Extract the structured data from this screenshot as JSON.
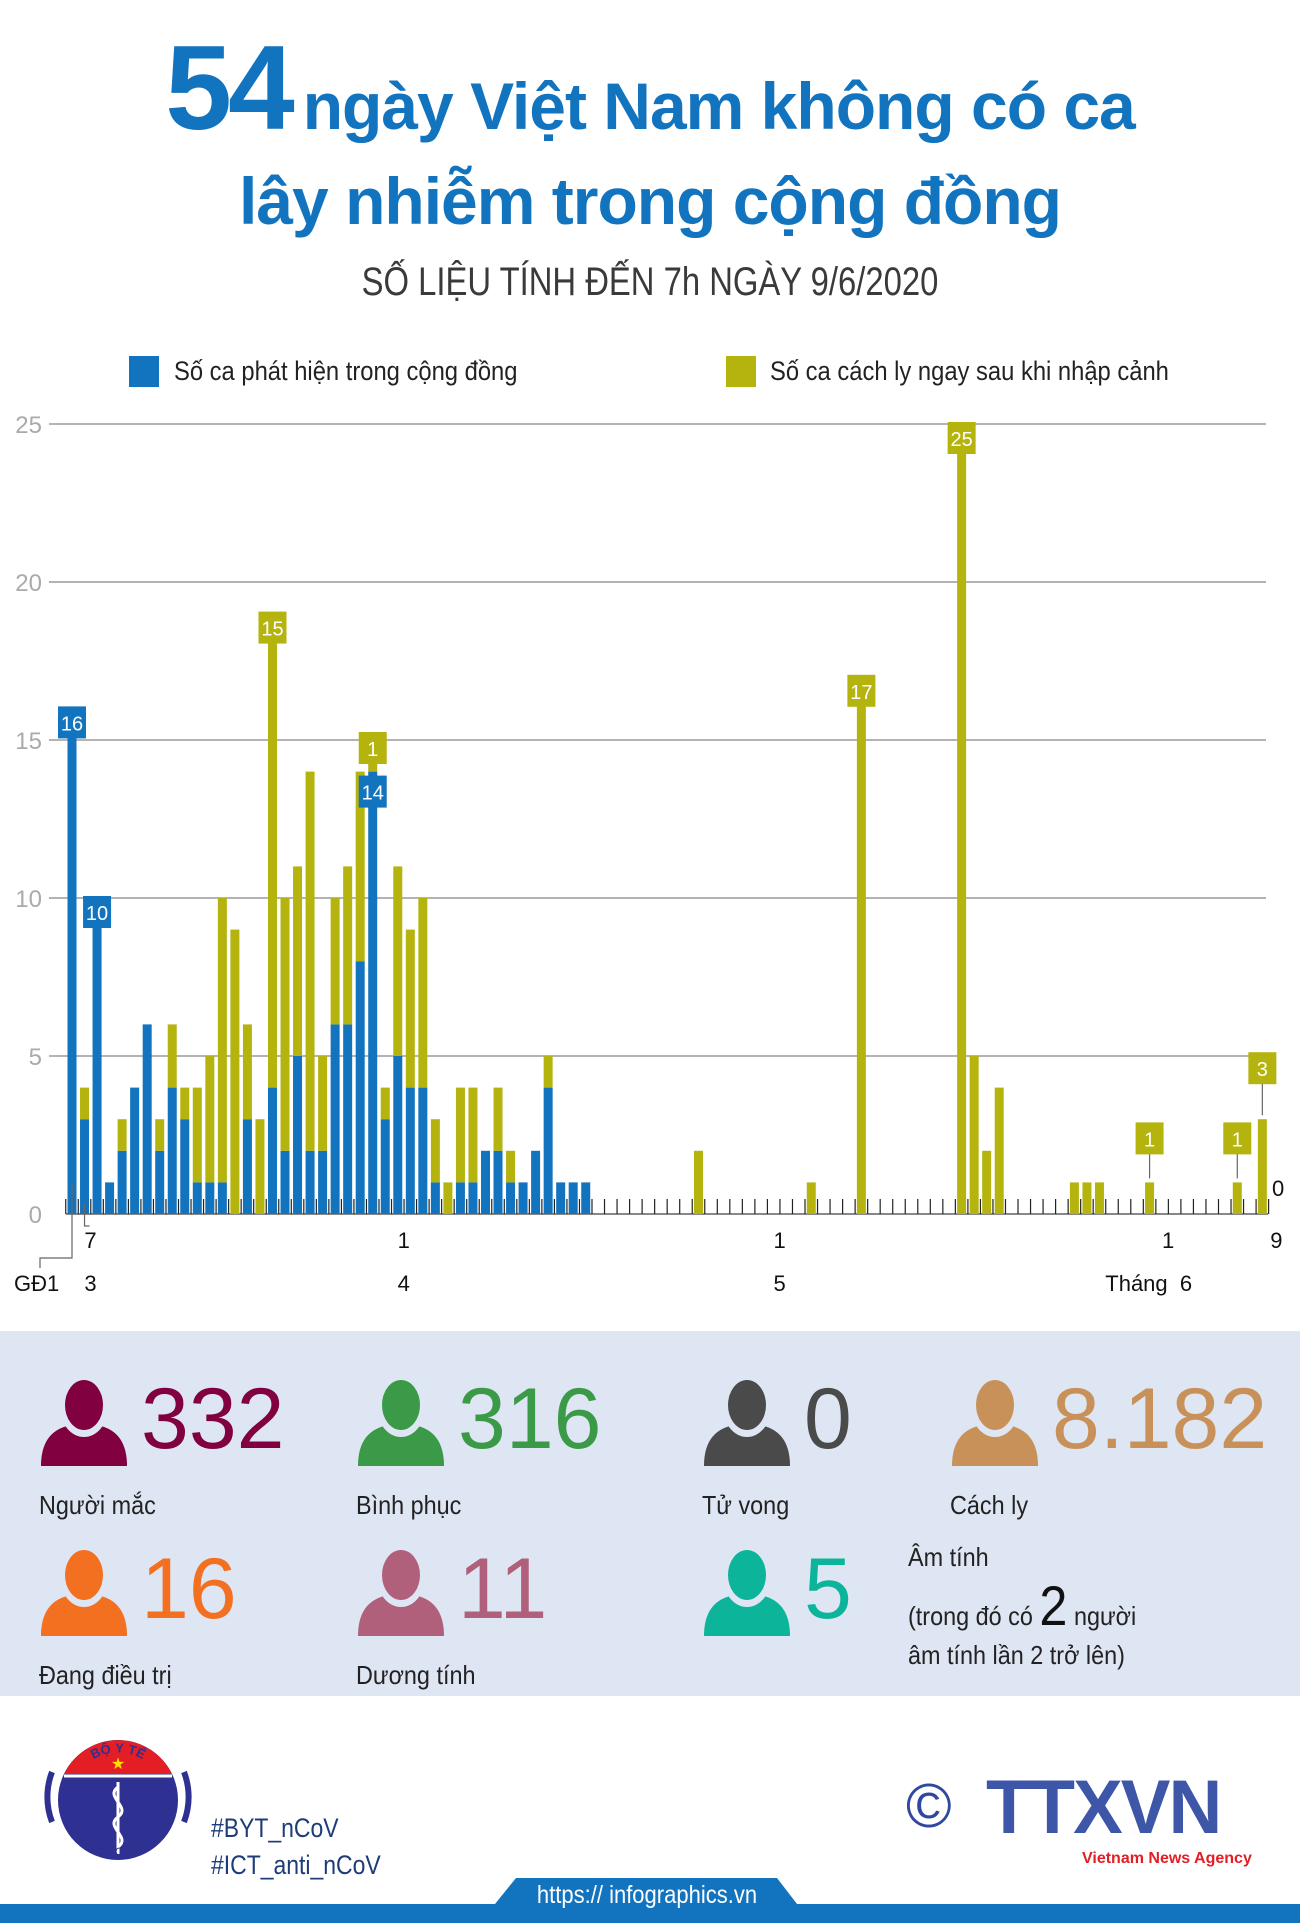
{
  "header": {
    "title_number": "54",
    "title_line1_rest": "ngày Việt Nam không có ca",
    "title_line2": "lây nhiễm trong cộng đồng",
    "subtitle": "SỐ LIỆU TÍNH ĐẾN 7h NGÀY 9/6/2020"
  },
  "colors": {
    "title": "#1273be",
    "community": "#1273be",
    "quarantine": "#b5b30e"
  },
  "chart_data": {
    "type": "bar",
    "stacked": true,
    "grid": true,
    "legend_position": "top",
    "ylim": [
      0,
      25
    ],
    "y_ticks": [
      "0",
      "5",
      "10",
      "15",
      "20",
      "25"
    ],
    "categories": [
      "GĐ1",
      "7/3",
      "8/3",
      "9/3",
      "10/3",
      "11/3",
      "12/3",
      "13/3",
      "14/3",
      "15/3",
      "16/3",
      "17/3",
      "18/3",
      "19/3",
      "20/3",
      "21/3",
      "22/3",
      "23/3",
      "24/3",
      "25/3",
      "26/3",
      "27/3",
      "28/3",
      "29/3",
      "30/3",
      "31/3",
      "1/4",
      "2/4",
      "3/4",
      "4/4",
      "5/4",
      "6/4",
      "7/4",
      "8/4",
      "9/4",
      "10/4",
      "11/4",
      "12/4",
      "13/4",
      "14/4",
      "15/4",
      "16/4",
      "17/4",
      "18/4",
      "19/4",
      "20/4",
      "21/4",
      "22/4",
      "23/4",
      "24/4",
      "25/4",
      "26/4",
      "27/4",
      "28/4",
      "29/4",
      "30/4",
      "1/5",
      "2/5",
      "3/5",
      "4/5",
      "5/5",
      "6/5",
      "7/5",
      "8/5",
      "9/5",
      "10/5",
      "11/5",
      "12/5",
      "13/5",
      "14/5",
      "15/5",
      "16/5",
      "17/5",
      "18/5",
      "19/5",
      "20/5",
      "21/5",
      "22/5",
      "23/5",
      "24/5",
      "25/5",
      "26/5",
      "27/5",
      "28/5",
      "29/5",
      "30/5",
      "31/5",
      "1/6",
      "2/6",
      "3/6",
      "4/6",
      "5/6",
      "6/6",
      "7/6",
      "8/6",
      "9/6"
    ],
    "series": [
      {
        "name": "Số ca phát hiện trong cộng đồng",
        "color": "#1273be",
        "values": [
          16,
          3,
          10,
          1,
          2,
          4,
          6,
          2,
          4,
          3,
          1,
          1,
          1,
          0,
          3,
          0,
          4,
          2,
          5,
          2,
          2,
          6,
          6,
          8,
          14,
          3,
          5,
          4,
          4,
          1,
          0,
          1,
          1,
          2,
          2,
          1,
          1,
          2,
          4,
          1,
          1,
          1,
          0,
          0,
          0,
          0,
          0,
          0,
          0,
          0,
          0,
          0,
          0,
          0,
          0,
          0,
          0,
          0,
          0,
          0,
          0,
          0,
          0,
          0,
          0,
          0,
          0,
          0,
          0,
          0,
          0,
          0,
          0,
          0,
          0,
          0,
          0,
          0,
          0,
          0,
          0,
          0,
          0,
          0,
          0,
          0,
          0,
          0,
          0,
          0,
          0,
          0,
          0,
          0,
          0,
          0
        ]
      },
      {
        "name": "Số ca cách ly ngay sau khi nhập cảnh",
        "color": "#b5b30e",
        "values": [
          0,
          1,
          0,
          0,
          1,
          0,
          0,
          1,
          2,
          1,
          3,
          4,
          9,
          9,
          3,
          3,
          15,
          8,
          6,
          12,
          3,
          4,
          5,
          6,
          1,
          1,
          6,
          5,
          6,
          2,
          1,
          3,
          3,
          0,
          2,
          1,
          0,
          0,
          1,
          0,
          0,
          0,
          0,
          0,
          0,
          0,
          0,
          0,
          0,
          0,
          2,
          0,
          0,
          0,
          0,
          0,
          0,
          0,
          0,
          1,
          0,
          0,
          0,
          17,
          0,
          0,
          0,
          0,
          0,
          0,
          0,
          25,
          5,
          2,
          4,
          0,
          0,
          0,
          0,
          0,
          1,
          1,
          1,
          0,
          0,
          0,
          1,
          0,
          0,
          0,
          0,
          0,
          0,
          1,
          0,
          3
        ]
      }
    ],
    "data_labels": [
      {
        "index": 0,
        "series": 0,
        "text": "16"
      },
      {
        "index": 2,
        "series": 0,
        "text": "10"
      },
      {
        "index": 16,
        "series": 1,
        "text": "15"
      },
      {
        "index": 24,
        "series": 0,
        "text": "14"
      },
      {
        "index": 24,
        "series": 1,
        "text": "1"
      },
      {
        "index": 63,
        "series": 1,
        "text": "17"
      },
      {
        "index": 71,
        "series": 1,
        "text": "25"
      },
      {
        "index": 86,
        "series": 1,
        "text": "1"
      },
      {
        "index": 93,
        "series": 1,
        "text": "1"
      },
      {
        "index": 95,
        "series": 1,
        "text": "3"
      }
    ],
    "x_day_labels": [
      {
        "index": 1,
        "text": "7"
      },
      {
        "index": 26,
        "text": "1"
      },
      {
        "index": 56,
        "text": "1"
      },
      {
        "index": 87,
        "text": "1"
      },
      {
        "index": 95,
        "text": "9"
      }
    ],
    "x_month_labels": [
      {
        "index": 1,
        "text": "3"
      },
      {
        "index": 26,
        "text": "4"
      },
      {
        "index": 56,
        "text": "5"
      },
      {
        "index": 87,
        "text": "Tháng  6"
      }
    ],
    "phase_label": "GĐ1",
    "end_value_label": "0"
  },
  "stats": [
    {
      "number": "332",
      "label": "Người mắc",
      "color": "#800040"
    },
    {
      "number": "316",
      "label": "Bình phục",
      "color": "#3a9a48"
    },
    {
      "number": "0",
      "label": "Tử vong",
      "color": "#4a4a4a"
    },
    {
      "number": "8.182",
      "label": "Cách ly",
      "color": "#c8915a"
    },
    {
      "number": "16",
      "label": "Đang điều trị",
      "color": "#f37021"
    },
    {
      "number": "11",
      "label": "Dương tính",
      "color": "#b0607a"
    },
    {
      "number": "5",
      "label": "",
      "color": "#0cb59a"
    }
  ],
  "negative_note": {
    "line1": "Âm tính",
    "line2_prefix": "(trong đó có",
    "count": "2",
    "line2_suffix": "người",
    "line3": "âm tính lần 2 trở lên)"
  },
  "footer": {
    "moh_logo_top": "BỘ Y TẾ",
    "moh_logo_bottom": "MINISTRY OF HEALTH",
    "hashtag1": "#BYT_nCoV",
    "hashtag2": "#ICT_anti_nCoV",
    "copyright_symbol": "©",
    "agency_logo": "TTXVN",
    "agency_name": "Vietnam News Agency",
    "url": "https:// infographics.vn"
  }
}
